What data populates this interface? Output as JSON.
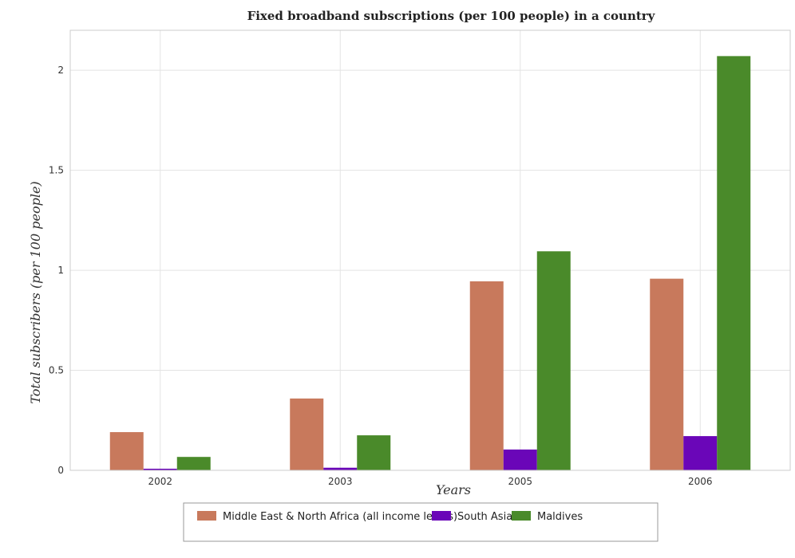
{
  "chart_data": {
    "type": "bar",
    "title": "Fixed broadband subscriptions (per 100 people) in a country",
    "xlabel": "Years",
    "ylabel": "Total subscribers (per 100 people)",
    "categories": [
      "2002",
      "2003",
      "2005",
      "2006"
    ],
    "ylim": [
      0,
      2.2
    ],
    "yticks": [
      0,
      0.5,
      1,
      1.5,
      2
    ],
    "ytick_labels": [
      "0",
      "0.5",
      "1",
      "1.5",
      "2"
    ],
    "grid": true,
    "legend_position": "bottom",
    "series": [
      {
        "name": "Middle East & North Africa (all income levels)",
        "color": "#c8795c",
        "values": [
          0.191,
          0.359,
          0.945,
          0.958
        ]
      },
      {
        "name": "South Asia",
        "color": "#6a06b8",
        "values": [
          0.008,
          0.013,
          0.104,
          0.171
        ]
      },
      {
        "name": "Maldives",
        "color": "#4a8a2a",
        "values": [
          0.067,
          0.175,
          1.095,
          2.071
        ]
      }
    ]
  }
}
